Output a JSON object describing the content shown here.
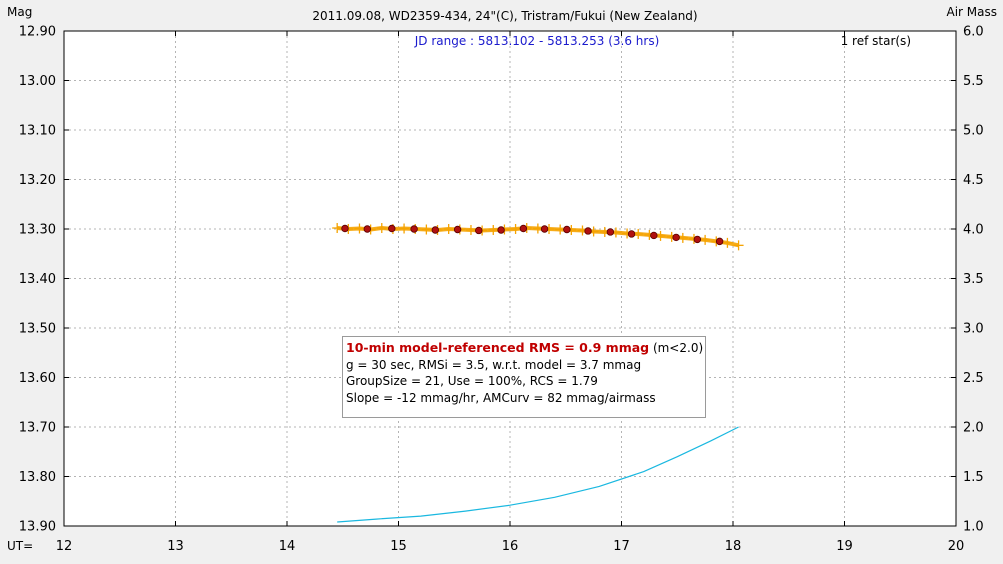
{
  "chart_data": {
    "type": "scatter",
    "title": "2011.09.08, WD2359-434, 24\"(C), Tristram/Fukui (New Zealand)",
    "jd_range": "JD range : 5813.102 - 5813.253 (3.6 hrs)",
    "ref_stars": "1 ref star(s)",
    "ylabel_left": "Mag",
    "ylabel_right": "Air Mass",
    "xlabel": "UT=",
    "xlim": [
      12,
      20
    ],
    "ylim_left": [
      13.9,
      12.9
    ],
    "ylim_right": [
      1.0,
      6.0
    ],
    "grid": true,
    "x_ticks": [
      "12",
      "13",
      "14",
      "15",
      "16",
      "17",
      "18",
      "19",
      "20"
    ],
    "y_left_ticks": [
      "12.90",
      "13.00",
      "13.10",
      "13.20",
      "13.30",
      "13.40",
      "13.50",
      "13.60",
      "13.70",
      "13.80",
      "13.90"
    ],
    "y_right_ticks": [
      "6.0",
      "5.5",
      "5.0",
      "4.5",
      "4.0",
      "3.5",
      "3.0",
      "2.5",
      "2.0",
      "1.5",
      "1.0"
    ],
    "series": [
      {
        "kind": "raw",
        "color": "#f5a300",
        "x": [
          14.45,
          14.55,
          14.65,
          14.75,
          14.85,
          14.95,
          15.05,
          15.15,
          15.25,
          15.35,
          15.45,
          15.55,
          15.65,
          15.75,
          15.85,
          15.95,
          16.05,
          16.15,
          16.25,
          16.35,
          16.45,
          16.55,
          16.65,
          16.75,
          16.85,
          16.95,
          17.05,
          17.15,
          17.25,
          17.35,
          17.45,
          17.55,
          17.65,
          17.75,
          17.85,
          17.95,
          18.05
        ],
        "y": [
          13.298,
          13.3,
          13.299,
          13.301,
          13.298,
          13.3,
          13.299,
          13.3,
          13.301,
          13.302,
          13.3,
          13.301,
          13.302,
          13.303,
          13.302,
          13.301,
          13.3,
          13.298,
          13.299,
          13.3,
          13.301,
          13.302,
          13.303,
          13.305,
          13.306,
          13.307,
          13.309,
          13.31,
          13.312,
          13.314,
          13.316,
          13.318,
          13.32,
          13.322,
          13.325,
          13.328,
          13.333
        ]
      },
      {
        "kind": "binned",
        "color": "#b01010",
        "x": [
          14.52,
          14.72,
          14.94,
          15.14,
          15.33,
          15.53,
          15.72,
          15.92,
          16.12,
          16.31,
          16.51,
          16.7,
          16.9,
          17.09,
          17.29,
          17.49,
          17.68,
          17.88
        ],
        "y": [
          13.299,
          13.3,
          13.299,
          13.3,
          13.302,
          13.301,
          13.303,
          13.302,
          13.299,
          13.3,
          13.301,
          13.304,
          13.306,
          13.31,
          13.313,
          13.317,
          13.321,
          13.325
        ]
      },
      {
        "kind": "airmass",
        "color": "#1ab8e0",
        "axis": "right",
        "x": [
          14.45,
          14.8,
          15.2,
          15.6,
          16.0,
          16.4,
          16.8,
          17.2,
          17.5,
          17.8,
          18.05
        ],
        "y": [
          1.04,
          1.07,
          1.1,
          1.15,
          1.21,
          1.29,
          1.4,
          1.55,
          1.7,
          1.86,
          2.0
        ]
      }
    ]
  },
  "stats": {
    "rms": "10-min model-referenced RMS = 0.9 mmag",
    "condition": " (m<2.0)",
    "line2": "g = 30 sec, RMSi = 3.5, w.r.t. model = 3.7 mmag",
    "line3": "GroupSize = 21, Use = 100%, RCS = 1.79",
    "line4": "Slope = -12 mmag/hr, AMCurv = 82 mmag/airmass"
  }
}
